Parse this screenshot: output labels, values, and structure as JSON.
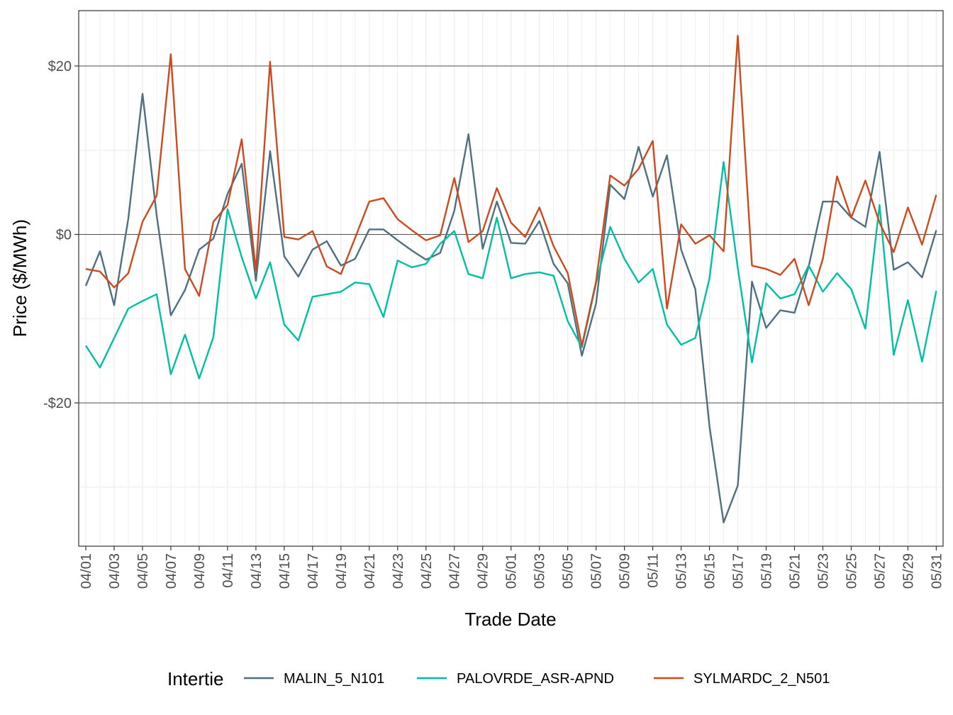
{
  "chart_data": {
    "type": "line",
    "title": "",
    "xlabel": "Trade Date",
    "ylabel": "Price ($/MWh)",
    "ylim": [
      -37,
      26
    ],
    "y_ticks": [
      -20,
      0,
      20
    ],
    "y_tick_labels": [
      "-$20",
      "$0",
      "$20"
    ],
    "grid": true,
    "legend": {
      "title": "Intertie",
      "position": "bottom"
    },
    "x": [
      "04/01",
      "04/02",
      "04/03",
      "04/04",
      "04/05",
      "04/06",
      "04/07",
      "04/08",
      "04/09",
      "04/10",
      "04/11",
      "04/12",
      "04/13",
      "04/14",
      "04/15",
      "04/16",
      "04/17",
      "04/18",
      "04/19",
      "04/20",
      "04/21",
      "04/22",
      "04/23",
      "04/24",
      "04/25",
      "04/26",
      "04/27",
      "04/28",
      "04/29",
      "04/30",
      "05/01",
      "05/02",
      "05/03",
      "05/04",
      "05/05",
      "05/06",
      "05/07",
      "05/08",
      "05/09",
      "05/10",
      "05/11",
      "05/12",
      "05/13",
      "05/14",
      "05/15",
      "05/16",
      "05/17",
      "05/18",
      "05/19",
      "05/20",
      "05/21",
      "05/22",
      "05/23",
      "05/24",
      "05/25",
      "05/26",
      "05/27",
      "05/28",
      "05/29",
      "05/30",
      "05/31"
    ],
    "x_tick_labels": [
      "04/01",
      "04/03",
      "04/05",
      "04/07",
      "04/09",
      "04/11",
      "04/13",
      "04/15",
      "04/17",
      "04/19",
      "04/21",
      "04/23",
      "04/25",
      "04/27",
      "04/29",
      "05/01",
      "05/03",
      "05/05",
      "05/07",
      "05/09",
      "05/11",
      "05/13",
      "05/15",
      "05/17",
      "05/19",
      "05/21",
      "05/23",
      "05/25",
      "05/27",
      "05/29",
      "05/31"
    ],
    "series": [
      {
        "name": "MALIN_5_N101",
        "color": "#4e7080",
        "values": [
          -6.1,
          -2.0,
          -8.4,
          1.9,
          16.7,
          2.3,
          -9.6,
          -6.6,
          -1.8,
          -0.5,
          4.8,
          8.4,
          -5.5,
          9.9,
          -2.6,
          -5.0,
          -1.8,
          -0.8,
          -3.7,
          -2.9,
          0.6,
          0.6,
          -0.7,
          -1.9,
          -3.0,
          -2.2,
          2.8,
          11.9,
          -1.7,
          3.9,
          -1.0,
          -1.1,
          1.6,
          -3.5,
          -5.8,
          -14.4,
          -8.2,
          5.9,
          4.2,
          10.4,
          4.5,
          9.4,
          -1.8,
          -6.5,
          -22.8,
          -34.2,
          -29.8,
          -5.6,
          -11.1,
          -9.0,
          -9.3,
          -3.8,
          3.9,
          3.9,
          2.0,
          0.9,
          9.8,
          -4.2,
          -3.3,
          -5.1,
          0.5
        ]
      },
      {
        "name": "PALOVRDE_ASR-APND",
        "color": "#00bfa5",
        "values": [
          -13.2,
          -15.8,
          -12.3,
          -8.8,
          -7.9,
          -7.1,
          -16.6,
          -11.9,
          -17.1,
          -12.2,
          3.0,
          -2.7,
          -7.6,
          -3.3,
          -10.7,
          -12.6,
          -7.4,
          -7.1,
          -6.8,
          -5.7,
          -5.9,
          -9.8,
          -3.1,
          -3.9,
          -3.5,
          -1.1,
          0.4,
          -4.7,
          -5.2,
          2.0,
          -5.2,
          -4.7,
          -4.5,
          -4.9,
          -10.3,
          -13.4,
          -5.8,
          0.9,
          -2.9,
          -5.7,
          -4.1,
          -10.7,
          -13.1,
          -12.3,
          -5.2,
          8.6,
          -4.0,
          -15.2,
          -5.8,
          -7.6,
          -7.1,
          -3.7,
          -6.8,
          -4.6,
          -6.5,
          -11.2,
          3.5,
          -14.3,
          -7.8,
          -15.1,
          -6.7
        ]
      },
      {
        "name": "SYLMARDC_2_N501",
        "color": "#cc4a1e",
        "values": [
          -4.1,
          -4.4,
          -6.3,
          -4.6,
          1.5,
          4.6,
          21.4,
          -4.1,
          -7.3,
          1.5,
          3.5,
          11.3,
          -4.3,
          20.5,
          -0.3,
          -0.6,
          0.4,
          -3.8,
          -4.7,
          -0.4,
          3.9,
          4.3,
          1.8,
          0.5,
          -0.7,
          -0.1,
          6.7,
          -0.9,
          0.4,
          5.5,
          1.4,
          -0.3,
          3.2,
          -1.4,
          -4.6,
          -13.2,
          -5.6,
          7.0,
          5.8,
          7.8,
          11.1,
          -8.8,
          1.2,
          -1.1,
          -0.1,
          -2.0,
          23.6,
          -3.7,
          -4.1,
          -4.8,
          -2.9,
          -8.4,
          -2.9,
          6.9,
          2.0,
          6.4,
          1.4,
          -2.1,
          3.2,
          -1.2,
          4.7
        ]
      }
    ]
  }
}
